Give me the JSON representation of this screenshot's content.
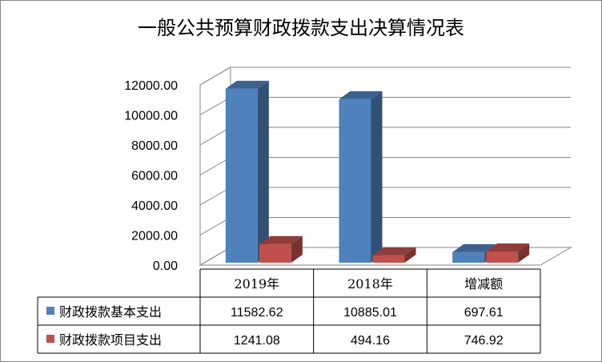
{
  "chart_data": {
    "type": "bar",
    "title": "一般公共预算财政拨款支出决算情况表",
    "categories": [
      "2019年",
      "2018年",
      "增减额"
    ],
    "series": [
      {
        "name": "财政拨款基本支出",
        "values": [
          11582.62,
          10885.01,
          697.61
        ],
        "labels": [
          "11582.62",
          "10885.01",
          "697.61"
        ],
        "color": "#4f81bd"
      },
      {
        "name": "财政拨款项目支出",
        "values": [
          1241.08,
          494.16,
          746.92
        ],
        "labels": [
          "1241.08",
          "494.16",
          "746.92"
        ],
        "color": "#c0504d"
      }
    ],
    "y_ticks": [
      "0.00",
      "2000.00",
      "4000.00",
      "6000.00",
      "8000.00",
      "10000.00",
      "12000.00"
    ],
    "ylim": [
      0,
      12000
    ],
    "grid": true,
    "legend": "data-table",
    "style": "3d-column"
  }
}
